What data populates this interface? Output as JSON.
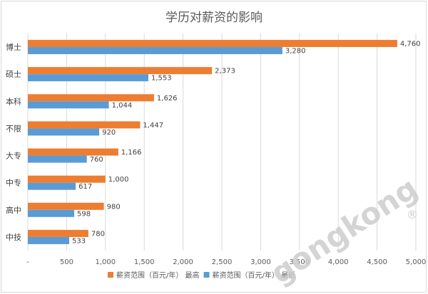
{
  "chart_data": {
    "type": "bar",
    "orientation": "horizontal",
    "title": "学历对薪资的影响",
    "categories": [
      "博士",
      "硕士",
      "本科",
      "不限",
      "大专",
      "中专",
      "高中",
      "中技"
    ],
    "series": [
      {
        "name": "薪资范围（百元/年） 最高",
        "color": "#ed7d31",
        "values": [
          4760,
          2373,
          1626,
          1447,
          1166,
          1000,
          980,
          780
        ],
        "labels": [
          "4,760",
          "2,373",
          "1,626",
          "1,447",
          "1,166",
          "1,000",
          "980",
          "780"
        ]
      },
      {
        "name": "薪资范围（百元/年） 最低",
        "color": "#5b9bd5",
        "values": [
          3280,
          1553,
          1044,
          920,
          760,
          617,
          598,
          533
        ],
        "labels": [
          "3,280",
          "1,553",
          "1,044",
          "920",
          "760",
          "617",
          "598",
          "533"
        ]
      }
    ],
    "xlim": [
      0,
      5000
    ],
    "xticks": [
      0,
      500,
      1000,
      1500,
      2000,
      2500,
      3000,
      3500,
      4000,
      4500,
      5000
    ],
    "xtick_labels": [
      "-",
      "500",
      "1,000",
      "1,500",
      "2,000",
      "2,500",
      "3,000",
      "3,500",
      "4,000",
      "4,500",
      "5,000"
    ],
    "grid": true,
    "legend": "bottom"
  },
  "watermark": {
    "text": "gongkong",
    "mark": "®",
    "color": "#cccccc"
  }
}
